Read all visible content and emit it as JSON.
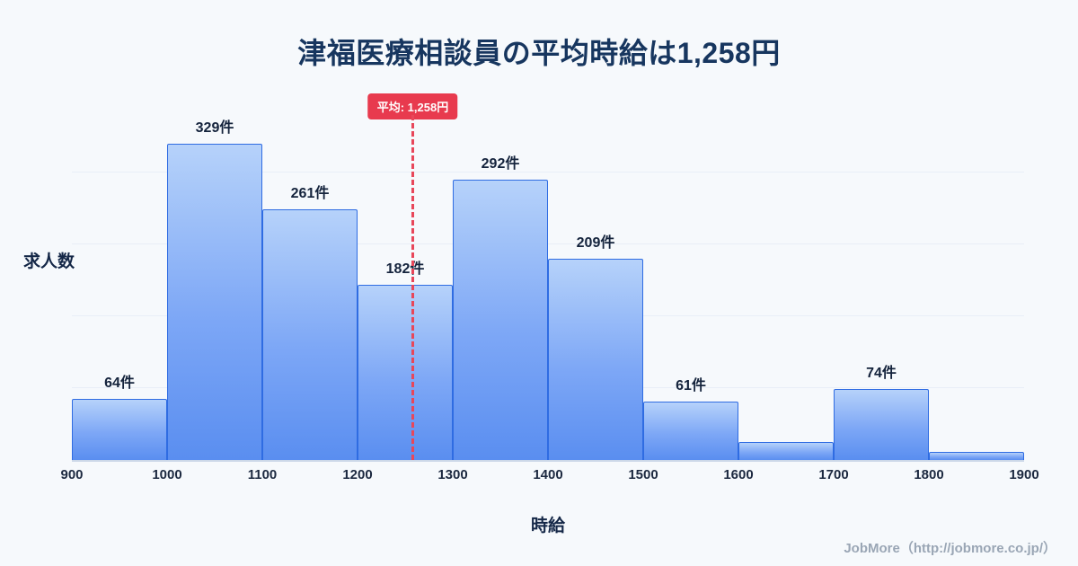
{
  "title": "津福医療相談員の平均時給は1,258円",
  "y_axis_label": "求人数",
  "x_axis_label": "時給",
  "footer": "JobMore（http://jobmore.co.jp/）",
  "average": {
    "label": "平均: 1,258円",
    "value": 1258
  },
  "colors": {
    "background": "#f6f9fc",
    "title": "#17365f",
    "bar_top": "#b6d2fa",
    "bar_bottom": "#5a8ef0",
    "bar_border": "#2f6ce2",
    "average_red": "#e83a4e",
    "footer_gray": "#9aa6b5"
  },
  "chart_data": {
    "type": "bar",
    "title": "津福医療相談員の平均時給は1,258円",
    "xlabel": "時給",
    "ylabel": "求人数",
    "bin_edges": [
      900,
      1000,
      1100,
      1200,
      1300,
      1400,
      1500,
      1600,
      1700,
      1800,
      1900
    ],
    "x_ticks": [
      "900",
      "1000",
      "1100",
      "1200",
      "1300",
      "1400",
      "1500",
      "1600",
      "1700",
      "1800",
      "1900"
    ],
    "values": [
      64,
      329,
      261,
      182,
      292,
      209,
      61,
      19,
      74,
      8
    ],
    "bar_labels": [
      "64件",
      "329件",
      "261件",
      "182件",
      "292件",
      "209件",
      "61件",
      "",
      "74件",
      ""
    ],
    "ylim": [
      0,
      376
    ],
    "grid": "subtle-horizontal",
    "legend": "none",
    "average_line": {
      "x": 1258,
      "label": "平均: 1,258円",
      "style": "red-dashed"
    }
  }
}
